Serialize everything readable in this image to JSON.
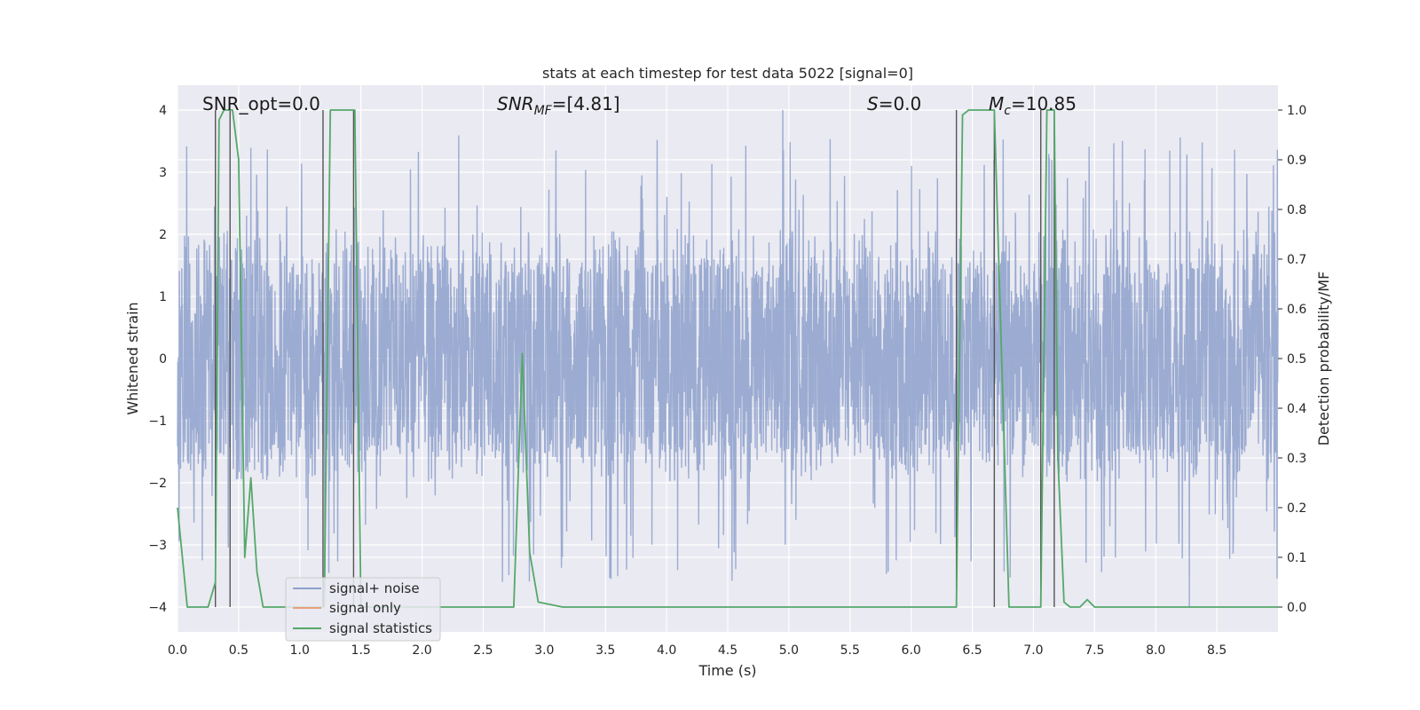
{
  "chart_data": {
    "type": "line",
    "title": "stats at each timestep for test data 5022 [signal=0]",
    "xlabel": "Time (s)",
    "ylabel": "Whitened strain",
    "ylabel_right": "Detection probability/MF",
    "xlim": [
      0.0,
      9.0
    ],
    "ylim": [
      -4.4,
      4.4
    ],
    "ylim_right": [
      -0.05,
      1.05
    ],
    "x_ticks": [
      0.0,
      0.5,
      1.0,
      1.5,
      2.0,
      2.5,
      3.0,
      3.5,
      4.0,
      4.5,
      5.0,
      5.5,
      6.0,
      6.5,
      7.0,
      7.5,
      8.0,
      8.5
    ],
    "x_tick_labels": [
      "0.0",
      "0.5",
      "1.0",
      "1.5",
      "2.0",
      "2.5",
      "3.0",
      "3.5",
      "4.0",
      "4.5",
      "5.0",
      "5.5",
      "6.0",
      "6.5",
      "7.0",
      "7.5",
      "8.0",
      "8.5"
    ],
    "y_ticks": [
      -4,
      -3,
      -2,
      -1,
      0,
      1,
      2,
      3,
      4
    ],
    "y_tick_labels": [
      "−4",
      "−3",
      "−2",
      "−1",
      "0",
      "1",
      "2",
      "3",
      "4"
    ],
    "y_ticks_right": [
      0.0,
      0.1,
      0.2,
      0.3,
      0.4,
      0.5,
      0.6,
      0.7,
      0.8,
      0.9,
      1.0
    ],
    "y_tick_labels_right": [
      "0.0",
      "0.1",
      "0.2",
      "0.3",
      "0.4",
      "0.5",
      "0.6",
      "0.7",
      "0.8",
      "0.9",
      "1.0"
    ],
    "grid": true,
    "legend_position": "bottom-left",
    "legend": [
      {
        "label": "signal+ noise",
        "color": "#8da0cb"
      },
      {
        "label": "signal only",
        "color": "#e8a07a"
      },
      {
        "label": "signal statistics",
        "color": "#55a868"
      }
    ],
    "annotations": {
      "snr_opt": "SNR_opt=0.0",
      "snr_mf_main": "SNR",
      "snr_mf_sub": "MF",
      "snr_mf_value": "=[4.81]",
      "s_main": "S",
      "s_value": "=0.0",
      "mc_main": "M",
      "mc_sub": "c",
      "mc_value": "=10.85"
    },
    "noise": {
      "name": "signal+ noise",
      "duration": 9.0,
      "color": "#8da0cb",
      "typical_min": -1.8,
      "typical_max": 1.9,
      "extreme_min": -4.0,
      "extreme_max": 4.0
    },
    "statistic_series": {
      "name": "signal statistics",
      "color": "#55a868",
      "x": [
        0.0,
        0.08,
        0.15,
        0.25,
        0.31,
        0.34,
        0.38,
        0.42,
        0.45,
        0.5,
        0.55,
        0.6,
        0.65,
        0.7,
        0.75,
        1.0,
        1.2,
        1.25,
        1.3,
        1.45,
        1.5,
        2.75,
        2.82,
        2.88,
        2.95,
        3.15,
        6.37,
        6.42,
        6.47,
        6.68,
        6.8,
        7.06,
        7.11,
        7.17,
        7.2,
        7.25,
        7.3,
        7.38,
        7.44,
        7.5,
        9.0
      ],
      "y": [
        0.2,
        0.0,
        0.0,
        0.0,
        0.05,
        0.98,
        1.0,
        1.0,
        1.0,
        0.9,
        0.1,
        0.26,
        0.07,
        0.0,
        0.0,
        0.0,
        0.0,
        1.0,
        1.0,
        1.0,
        0.0,
        0.0,
        0.51,
        0.11,
        0.01,
        0.0,
        0.0,
        0.99,
        1.0,
        1.0,
        0.0,
        0.0,
        1.0,
        1.0,
        0.3,
        0.01,
        0.0,
        0.0,
        0.015,
        0.0,
        0.0
      ]
    },
    "vertical_lines": {
      "color": "#555555",
      "x": [
        0.31,
        0.43,
        1.19,
        1.44,
        6.37,
        6.68,
        7.06,
        7.17
      ],
      "y_top": 4.0,
      "y_bottom": -4.0
    }
  }
}
